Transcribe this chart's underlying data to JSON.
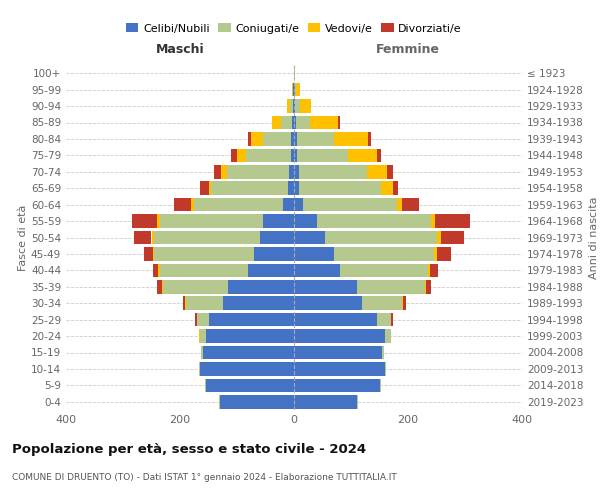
{
  "age_groups": [
    "0-4",
    "5-9",
    "10-14",
    "15-19",
    "20-24",
    "25-29",
    "30-34",
    "35-39",
    "40-44",
    "45-49",
    "50-54",
    "55-59",
    "60-64",
    "65-69",
    "70-74",
    "75-79",
    "80-84",
    "85-89",
    "90-94",
    "95-99",
    "100+"
  ],
  "birth_years": [
    "2019-2023",
    "2014-2018",
    "2009-2013",
    "2004-2008",
    "1999-2003",
    "1994-1998",
    "1989-1993",
    "1984-1988",
    "1979-1983",
    "1974-1978",
    "1969-1973",
    "1964-1968",
    "1959-1963",
    "1954-1958",
    "1949-1953",
    "1944-1948",
    "1939-1943",
    "1934-1938",
    "1929-1933",
    "1924-1928",
    "≤ 1923"
  ],
  "colors": {
    "celibi": "#4472c4",
    "coniugati": "#b5c98e",
    "vedovi": "#ffc000",
    "divorziati": "#c0392b"
  },
  "maschi": {
    "celibi": [
      130,
      155,
      165,
      160,
      155,
      150,
      125,
      115,
      80,
      70,
      60,
      55,
      20,
      10,
      8,
      5,
      5,
      3,
      2,
      1,
      0
    ],
    "coniugati": [
      2,
      2,
      2,
      3,
      10,
      20,
      65,
      115,
      155,
      175,
      185,
      180,
      155,
      135,
      110,
      80,
      50,
      20,
      5,
      0,
      0
    ],
    "vedovi": [
      0,
      0,
      0,
      0,
      1,
      1,
      2,
      2,
      3,
      3,
      5,
      5,
      5,
      5,
      10,
      15,
      20,
      15,
      5,
      2,
      0
    ],
    "divorziati": [
      0,
      0,
      0,
      0,
      1,
      2,
      3,
      8,
      10,
      15,
      30,
      45,
      30,
      15,
      12,
      10,
      5,
      0,
      0,
      0,
      0
    ]
  },
  "femmine": {
    "celibi": [
      110,
      150,
      160,
      155,
      160,
      145,
      120,
      110,
      80,
      70,
      55,
      40,
      15,
      8,
      8,
      5,
      5,
      3,
      2,
      1,
      0
    ],
    "coniugati": [
      2,
      2,
      2,
      3,
      10,
      25,
      70,
      120,
      155,
      175,
      195,
      200,
      165,
      145,
      120,
      90,
      65,
      25,
      8,
      2,
      0
    ],
    "vedovi": [
      0,
      0,
      0,
      0,
      0,
      1,
      1,
      2,
      3,
      5,
      8,
      8,
      10,
      20,
      35,
      50,
      60,
      50,
      20,
      8,
      2
    ],
    "divorziati": [
      0,
      0,
      0,
      0,
      1,
      2,
      5,
      8,
      15,
      25,
      40,
      60,
      30,
      10,
      10,
      8,
      5,
      2,
      0,
      0,
      0
    ]
  },
  "title": "Popolazione per età, sesso e stato civile - 2024",
  "subtitle": "COMUNE DI DRUENTO (TO) - Dati ISTAT 1° gennaio 2024 - Elaborazione TUTTITALIA.IT",
  "xlabel_left": "Maschi",
  "xlabel_right": "Femmine",
  "ylabel_left": "Fasce di età",
  "ylabel_right": "Anni di nascita",
  "xlim": 400,
  "legend_labels": [
    "Celibi/Nubili",
    "Coniugati/e",
    "Vedovi/e",
    "Divorziati/e"
  ]
}
